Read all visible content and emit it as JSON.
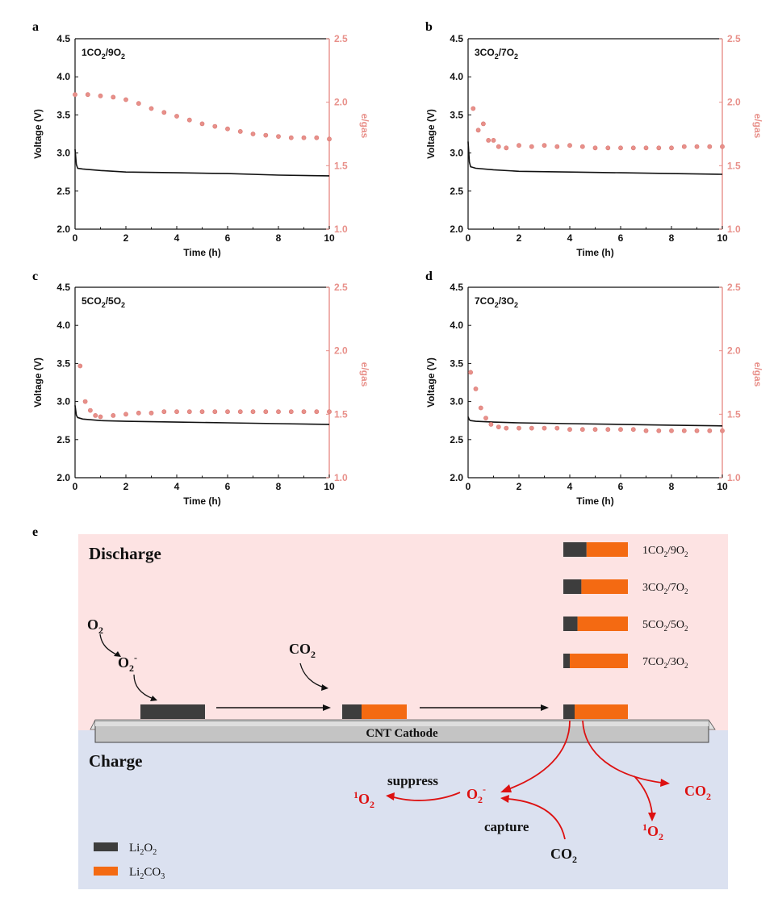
{
  "chart_data": [
    {
      "type": "line",
      "panel": "a",
      "annotation": [
        "1CO",
        "2",
        "/9O",
        "2"
      ],
      "xlabel": "Time (h)",
      "ylabel": "Voltage (V)",
      "y2label": "e/gas",
      "xlim": [
        0,
        10
      ],
      "ylim": [
        2.0,
        4.5
      ],
      "y2lim": [
        1.0,
        2.5
      ],
      "xticks": [
        "0",
        "2",
        "4",
        "6",
        "8",
        "10"
      ],
      "yticks": [
        "2.0",
        "2.5",
        "3.0",
        "3.5",
        "4.0",
        "4.5"
      ],
      "y2ticks": [
        "1.0",
        "1.5",
        "2.0",
        "2.5"
      ],
      "series": [
        {
          "axis": "left",
          "style": "line",
          "color": "#111111",
          "x": [
            0,
            0.05,
            0.1,
            0.3,
            1,
            2,
            4,
            6,
            8,
            10
          ],
          "y": [
            3.05,
            2.85,
            2.8,
            2.79,
            2.77,
            2.75,
            2.74,
            2.73,
            2.71,
            2.7
          ]
        },
        {
          "axis": "right",
          "style": "scatter",
          "color": "#e8908a",
          "x": [
            0,
            0.5,
            1,
            1.5,
            2,
            2.5,
            3,
            3.5,
            4,
            4.5,
            5,
            5.5,
            6,
            6.5,
            7,
            7.5,
            8,
            8.5,
            9,
            9.5,
            10
          ],
          "y": [
            2.06,
            2.06,
            2.05,
            2.04,
            2.02,
            1.99,
            1.95,
            1.92,
            1.89,
            1.86,
            1.83,
            1.81,
            1.79,
            1.77,
            1.75,
            1.74,
            1.73,
            1.72,
            1.72,
            1.72,
            1.71
          ]
        }
      ]
    },
    {
      "type": "line",
      "panel": "b",
      "annotation": [
        "3CO",
        "2",
        "/7O",
        "2"
      ],
      "xlabel": "Time (h)",
      "ylabel": "Voltage (V)",
      "y2label": "e/gas",
      "xlim": [
        0,
        10
      ],
      "ylim": [
        2.0,
        4.5
      ],
      "y2lim": [
        1.0,
        2.5
      ],
      "xticks": [
        "0",
        "2",
        "4",
        "6",
        "8",
        "10"
      ],
      "yticks": [
        "2.0",
        "2.5",
        "3.0",
        "3.5",
        "4.0",
        "4.5"
      ],
      "y2ticks": [
        "1.0",
        "1.5",
        "2.0",
        "2.5"
      ],
      "series": [
        {
          "axis": "left",
          "style": "line",
          "color": "#111111",
          "x": [
            0,
            0.05,
            0.1,
            0.3,
            1,
            2,
            4,
            6,
            8,
            10
          ],
          "y": [
            3.15,
            2.88,
            2.82,
            2.8,
            2.78,
            2.76,
            2.75,
            2.74,
            2.73,
            2.72
          ]
        },
        {
          "axis": "right",
          "style": "scatter",
          "color": "#e8908a",
          "x": [
            0.2,
            0.4,
            0.6,
            0.8,
            1.0,
            1.2,
            1.5,
            2,
            2.5,
            3,
            3.5,
            4,
            4.5,
            5,
            5.5,
            6,
            6.5,
            7,
            7.5,
            8,
            8.5,
            9,
            9.5,
            10
          ],
          "y": [
            1.95,
            1.78,
            1.83,
            1.7,
            1.7,
            1.65,
            1.64,
            1.66,
            1.65,
            1.66,
            1.65,
            1.66,
            1.65,
            1.64,
            1.64,
            1.64,
            1.64,
            1.64,
            1.64,
            1.64,
            1.65,
            1.65,
            1.65,
            1.65
          ]
        }
      ]
    },
    {
      "type": "line",
      "panel": "c",
      "annotation": [
        "5CO",
        "2",
        "/5O",
        "2"
      ],
      "xlabel": "Time (h)",
      "ylabel": "Voltage (V)",
      "y2label": "e/gas",
      "xlim": [
        0,
        10
      ],
      "ylim": [
        2.0,
        4.5
      ],
      "y2lim": [
        1.0,
        2.5
      ],
      "xticks": [
        "0",
        "2",
        "4",
        "6",
        "8",
        "10"
      ],
      "yticks": [
        "2.0",
        "2.5",
        "3.0",
        "3.5",
        "4.0",
        "4.5"
      ],
      "y2ticks": [
        "1.0",
        "1.5",
        "2.0",
        "2.5"
      ],
      "series": [
        {
          "axis": "left",
          "style": "line",
          "color": "#111111",
          "x": [
            0,
            0.05,
            0.1,
            0.3,
            1,
            2,
            4,
            6,
            8,
            10
          ],
          "y": [
            2.95,
            2.82,
            2.79,
            2.77,
            2.75,
            2.74,
            2.73,
            2.72,
            2.71,
            2.7
          ]
        },
        {
          "axis": "right",
          "style": "scatter",
          "color": "#e8908a",
          "x": [
            0.2,
            0.4,
            0.6,
            0.8,
            1,
            1.5,
            2,
            2.5,
            3,
            3.5,
            4,
            4.5,
            5,
            5.5,
            6,
            6.5,
            7,
            7.5,
            8,
            8.5,
            9,
            9.5,
            10
          ],
          "y": [
            1.88,
            1.6,
            1.53,
            1.49,
            1.48,
            1.49,
            1.5,
            1.51,
            1.51,
            1.52,
            1.52,
            1.52,
            1.52,
            1.52,
            1.52,
            1.52,
            1.52,
            1.52,
            1.52,
            1.52,
            1.52,
            1.52,
            1.52
          ]
        }
      ]
    },
    {
      "type": "line",
      "panel": "d",
      "annotation": [
        "7CO",
        "2",
        "/3O",
        "2"
      ],
      "xlabel": "Time (h)",
      "ylabel": "Voltage (V)",
      "y2label": "e/gas",
      "xlim": [
        0,
        10
      ],
      "ylim": [
        2.0,
        4.5
      ],
      "y2lim": [
        1.0,
        2.5
      ],
      "xticks": [
        "0",
        "2",
        "4",
        "6",
        "8",
        "10"
      ],
      "yticks": [
        "2.0",
        "2.5",
        "3.0",
        "3.5",
        "4.0",
        "4.5"
      ],
      "y2ticks": [
        "1.0",
        "1.5",
        "2.0",
        "2.5"
      ],
      "series": [
        {
          "axis": "left",
          "style": "line",
          "color": "#111111",
          "x": [
            0,
            0.05,
            0.1,
            0.3,
            1,
            2,
            4,
            6,
            8,
            10
          ],
          "y": [
            2.8,
            2.76,
            2.75,
            2.74,
            2.73,
            2.72,
            2.71,
            2.7,
            2.69,
            2.68
          ]
        },
        {
          "axis": "right",
          "style": "scatter",
          "color": "#e8908a",
          "x": [
            0.1,
            0.3,
            0.5,
            0.7,
            0.9,
            1.2,
            1.5,
            2,
            2.5,
            3,
            3.5,
            4,
            4.5,
            5,
            5.5,
            6,
            6.5,
            7,
            7.5,
            8,
            8.5,
            9,
            9.5,
            10
          ],
          "y": [
            1.83,
            1.7,
            1.55,
            1.47,
            1.42,
            1.4,
            1.39,
            1.39,
            1.39,
            1.39,
            1.39,
            1.38,
            1.38,
            1.38,
            1.38,
            1.38,
            1.38,
            1.37,
            1.37,
            1.37,
            1.37,
            1.37,
            1.37,
            1.37
          ]
        }
      ]
    }
  ],
  "schematic": {
    "panel": "e",
    "colors": {
      "discharge_bg": "#fde3e3",
      "charge_bg": "#dbe1f0",
      "li2o2": "#3d3d3d",
      "li2co3": "#f46a12",
      "reaction": "#dd1111"
    },
    "discharge_label": "Discharge",
    "charge_label": "Charge",
    "cathode_label": "CNT Cathode",
    "o2": [
      "O",
      "2"
    ],
    "o2_minus": [
      "O",
      "2",
      "-"
    ],
    "co2": [
      "CO",
      "2"
    ],
    "ratios": [
      {
        "label": [
          "1CO",
          "2",
          "/9O",
          "2"
        ],
        "li2o2_fraction": 0.36
      },
      {
        "label": [
          "3CO",
          "2",
          "/7O",
          "2"
        ],
        "li2o2_fraction": 0.28
      },
      {
        "label": [
          "5CO",
          "2",
          "/5O",
          "2"
        ],
        "li2o2_fraction": 0.22
      },
      {
        "label": [
          "7CO",
          "2",
          "/3O",
          "2"
        ],
        "li2o2_fraction": 0.1
      }
    ],
    "suppress_label": "suppress",
    "capture_label": "capture",
    "singlet_o2": [
      "1",
      "O",
      "2"
    ],
    "legend": [
      {
        "label": [
          "Li",
          "2",
          "O",
          "2"
        ]
      },
      {
        "label": [
          "Li",
          "2",
          "CO",
          "3"
        ]
      }
    ]
  }
}
